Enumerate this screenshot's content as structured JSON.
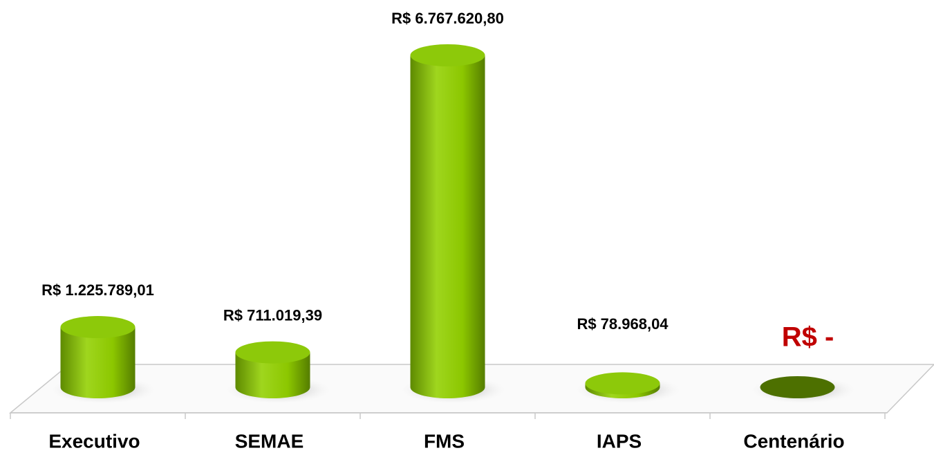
{
  "chart_data": {
    "type": "bar3d",
    "categories": [
      "Executivo",
      "SEMAE",
      "FMS",
      "IAPS",
      "Centenário"
    ],
    "values": [
      1225789.01,
      711019.39,
      6767620.8,
      78968.04,
      0
    ],
    "value_labels": [
      "R$ 1.225.789,01",
      "R$ 711.019,39",
      "R$ 6.767.620,80",
      "R$ 78.968,04",
      "R$ -"
    ],
    "value_label_colors": [
      "#000000",
      "#000000",
      "#000000",
      "#000000",
      "#c00000"
    ],
    "color": "#8dc90a"
  }
}
